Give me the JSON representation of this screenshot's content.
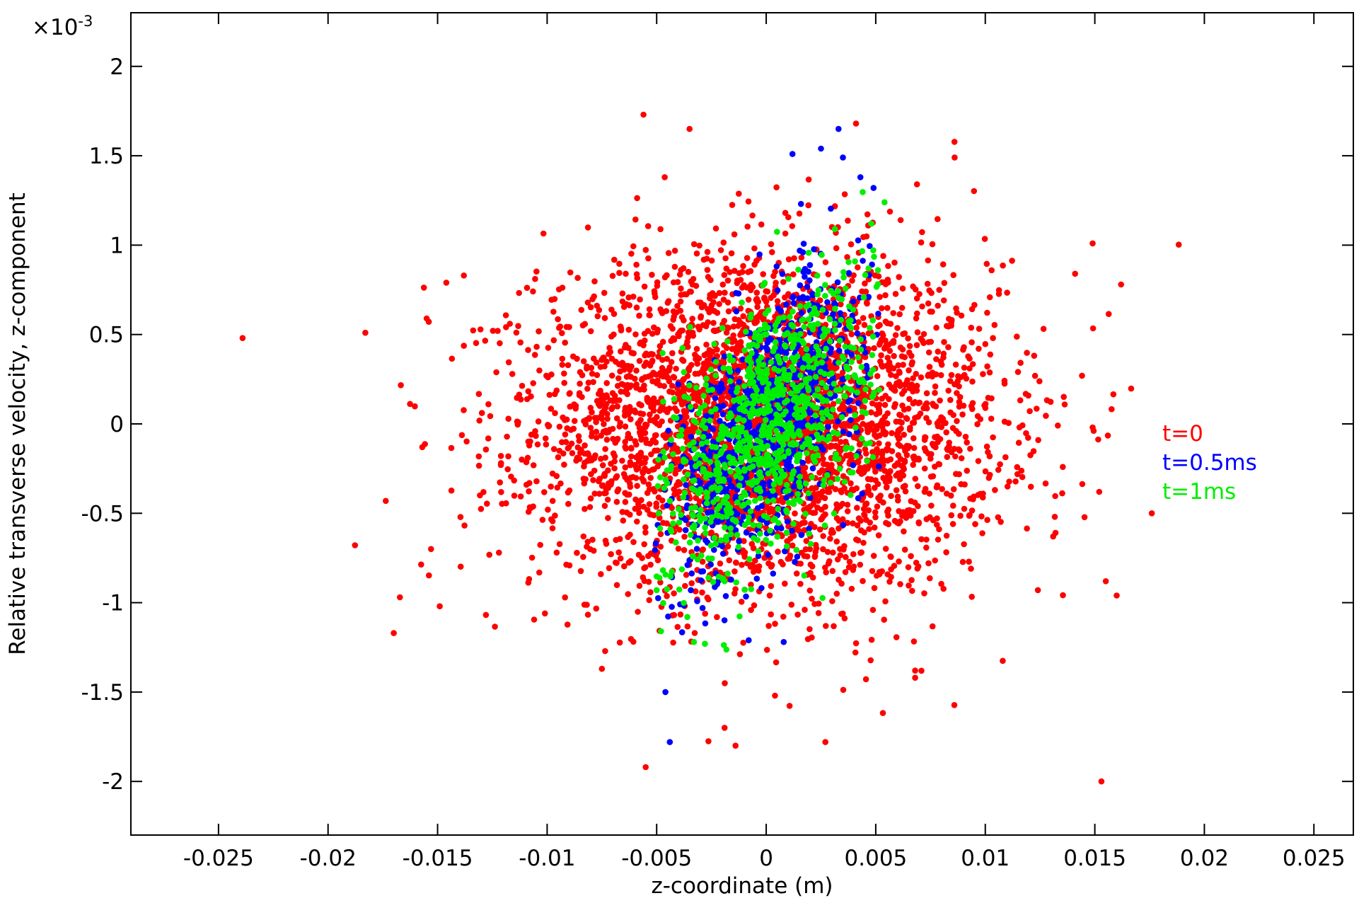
{
  "chart_data": {
    "type": "scatter",
    "title": "",
    "xlabel": "z-coordinate (m)",
    "ylabel": "Relative transverse velocity, z-component",
    "y_scale_label": "×10",
    "y_scale_exponent": "-3",
    "xlim": [
      -0.029,
      0.0268
    ],
    "ylim": [
      -2.3,
      2.3
    ],
    "x_ticks": [
      -0.025,
      -0.02,
      -0.015,
      -0.01,
      -0.005,
      0,
      0.005,
      0.01,
      0.015,
      0.02,
      0.025
    ],
    "x_tick_labels": [
      "-0.025",
      "-0.02",
      "-0.015",
      "-0.01",
      "-0.005",
      "0",
      "0.005",
      "0.01",
      "0.015",
      "0.02",
      "0.025"
    ],
    "y_ticks": [
      -2,
      -1.5,
      -1,
      -0.5,
      0,
      0.5,
      1,
      1.5,
      2
    ],
    "y_tick_labels": [
      "-2",
      "-1.5",
      "-1",
      "-0.5",
      "0",
      "0.5",
      "1",
      "1.5",
      "2"
    ],
    "grid": false,
    "legend_placement": "right",
    "colors": {
      "t0": "#ff0000",
      "t05": "#0000ff",
      "t1": "#00ee00"
    },
    "series": [
      {
        "name": "t=0",
        "color": "#ff0000",
        "distribution": {
          "count": 3800,
          "x_mean": 0.0,
          "x_std": 0.0052,
          "y_mean": 0.0,
          "y_std": 0.46,
          "correlation": 0.0
        },
        "points": [
          [
            -0.0239,
            0.48
          ],
          [
            -0.0183,
            0.51
          ],
          [
            -0.017,
            -1.17
          ],
          [
            -0.0153,
            -0.7
          ],
          [
            -0.0149,
            -1.02
          ],
          [
            -0.0157,
            -0.13
          ],
          [
            -0.0155,
            0.59
          ],
          [
            -0.0146,
            0.79
          ],
          [
            -0.0138,
            0.83
          ],
          [
            -0.0101,
            -1.06
          ],
          [
            -0.0075,
            -1.37
          ],
          [
            -0.0055,
            -1.92
          ],
          [
            -0.0056,
            1.73
          ],
          [
            -0.0035,
            1.65
          ],
          [
            0.0027,
            -1.78
          ],
          [
            -0.0014,
            -1.8
          ],
          [
            -0.0019,
            -1.7
          ],
          [
            0.0004,
            -1.52
          ],
          [
            0.0041,
            1.68
          ],
          [
            0.0086,
            1.49
          ],
          [
            0.0153,
            -2.0
          ],
          [
            0.0176,
            -0.5
          ],
          [
            0.0162,
            0.78
          ],
          [
            0.0149,
            1.01
          ],
          [
            0.016,
            -0.96
          ],
          [
            0.0155,
            -0.88
          ],
          [
            0.0152,
            -0.38
          ],
          [
            0.0149,
            -0.02
          ],
          [
            0.0141,
            0.84
          ],
          [
            0.0131,
            -0.63
          ],
          [
            0.0124,
            -0.93
          ],
          [
            0.0068,
            -1.42
          ],
          [
            0.0068,
            -1.38
          ],
          [
            -0.0117,
            0.56
          ],
          [
            -0.0122,
            -0.72
          ]
        ]
      },
      {
        "name": "t=0.5ms",
        "color": "#0000ff",
        "distribution": {
          "count": 900,
          "x_mean": 0.0,
          "x_std": 0.0022,
          "y_mean": 0.0,
          "y_std": 0.4,
          "correlation": 0.6
        },
        "points": [
          [
            0.0033,
            1.65
          ],
          [
            0.0025,
            1.54
          ],
          [
            0.0012,
            1.51
          ],
          [
            -0.0046,
            -1.5
          ],
          [
            -0.0044,
            -1.78
          ],
          [
            0.0035,
            1.49
          ],
          [
            0.0043,
            1.38
          ],
          [
            0.0049,
            1.32
          ],
          [
            -0.0008,
            -1.21
          ],
          [
            0.0008,
            -1.22
          ]
        ]
      },
      {
        "name": "t=1ms",
        "color": "#00ee00",
        "distribution": {
          "count": 900,
          "x_mean": 0.0,
          "x_std": 0.0026,
          "y_mean": 0.0,
          "y_std": 0.42,
          "correlation": 0.55
        },
        "points": [
          [
            0.0054,
            1.24
          ],
          [
            0.0048,
            1.12
          ],
          [
            0.0051,
            0.86
          ],
          [
            -0.005,
            -0.93
          ],
          [
            -0.0048,
            -1.16
          ],
          [
            -0.0033,
            -1.22
          ],
          [
            -0.0036,
            -1.08
          ],
          [
            -0.0019,
            -0.88
          ]
        ]
      }
    ]
  }
}
